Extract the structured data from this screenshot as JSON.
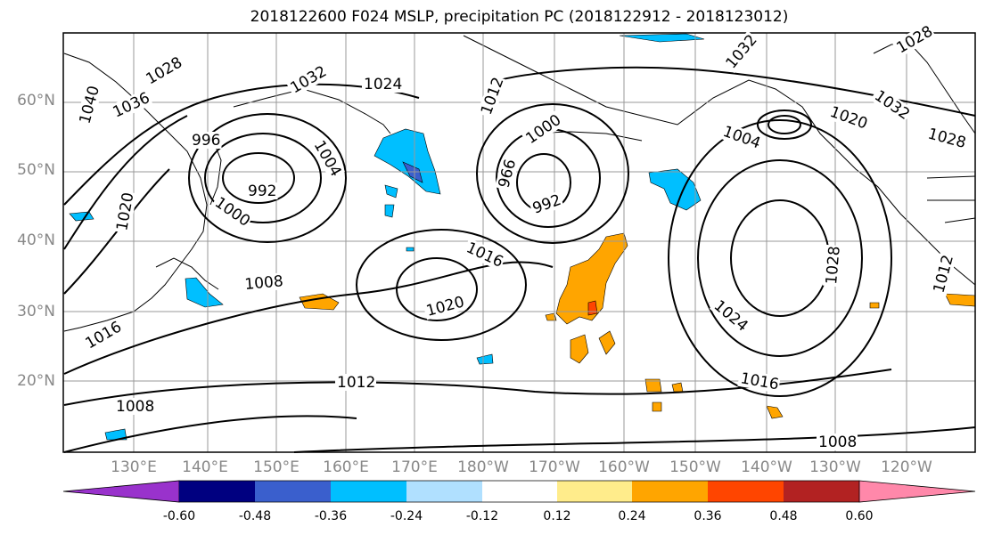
{
  "title": "2018122600 F024 MSLP, precipitation PC (2018122912 - 2018123012)",
  "lat_labels": [
    "60°N",
    "50°N",
    "40°N",
    "30°N",
    "20°N"
  ],
  "lon_labels": [
    "130°E",
    "140°E",
    "150°E",
    "160°E",
    "170°E",
    "180°W",
    "170°W",
    "160°W",
    "150°W",
    "140°W",
    "130°W",
    "120°W"
  ],
  "isobar_labels": [
    "1028",
    "1036",
    "1040",
    "1032",
    "1024",
    "1012",
    "1000",
    "996",
    "1004",
    "992",
    "1000",
    "966",
    "992",
    "1004",
    "1020",
    "1028",
    "1032",
    "1028",
    "1016",
    "1008",
    "1020",
    "1016",
    "1024",
    "1028",
    "1012",
    "1016",
    "1012",
    "1008",
    "1008",
    "1020",
    "1032"
  ],
  "colorbar": {
    "ticks": [
      "-0.60",
      "-0.48",
      "-0.36",
      "-0.24",
      "-0.12",
      "0.12",
      "0.24",
      "0.36",
      "0.48",
      "0.60"
    ],
    "colors": [
      "#9932cc",
      "#000080",
      "#3a5fcd",
      "#00bfff",
      "#b0e0ff",
      "#ffffff",
      "#ffec8b",
      "#ffa500",
      "#ff4500",
      "#b22222",
      "#ff88aa"
    ]
  }
}
